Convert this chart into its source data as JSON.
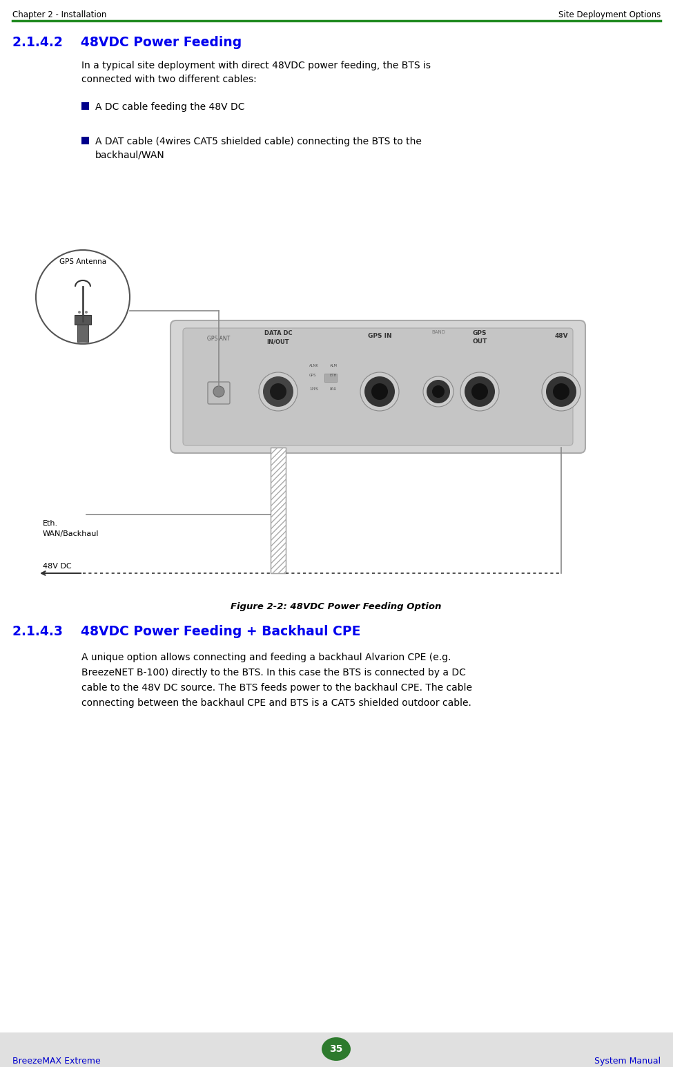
{
  "page_bg": "#ffffff",
  "footer_bg": "#e0e0e0",
  "header_text_left": "Chapter 2 - Installation",
  "header_text_right": "Site Deployment Options",
  "header_line_color": "#228B22",
  "footer_text_left": "BreezeMAX Extreme",
  "footer_text_right": "System Manual",
  "footer_page": "35",
  "footer_page_bg": "#2d7a2d",
  "section_heading": "2.1.4.2    48VDC Power Feeding",
  "section_heading_color": "#0000EE",
  "section_heading2": "2.1.4.3    48VDC Power Feeding + Backhaul CPE",
  "section_heading2_color": "#0000EE",
  "body_text1_line1": "In a typical site deployment with direct 48VDC power feeding, the BTS is",
  "body_text1_line2": "connected with two different cables:",
  "bullet1": "A DC cable feeding the 48V DC",
  "bullet2_line1": "A DAT cable (4wires CAT5 shielded cable) connecting the BTS to the",
  "bullet2_line2": "backhaul/WAN",
  "bullet_color": "#00008B",
  "figure_caption": "Figure 2-2: 48VDC Power Feeding Option",
  "body_text2_line1": "A unique option allows connecting and feeding a backhaul Alvarion CPE (e.g.",
  "body_text2_line2": "BreezeNET B-100) directly to the BTS. In this case the BTS is connected by a DC",
  "body_text2_line3": "cable to the 48V DC source. The BTS feeds power to the backhaul CPE. The cable",
  "body_text2_line4": "connecting between the backhaul CPE and BTS is a CAT5 shielded outdoor cable.",
  "text_color": "#000000",
  "bts_body_color": "#d8d8d8",
  "bts_panel_color": "#c8c8c8",
  "connector_dark": "#2a2a2a",
  "connector_mid": "#7a7a7a",
  "connector_ring": "#a0a0a0",
  "line_color": "#888888",
  "cable_hatch_color": "#888888",
  "dot_line_color": "#555555"
}
